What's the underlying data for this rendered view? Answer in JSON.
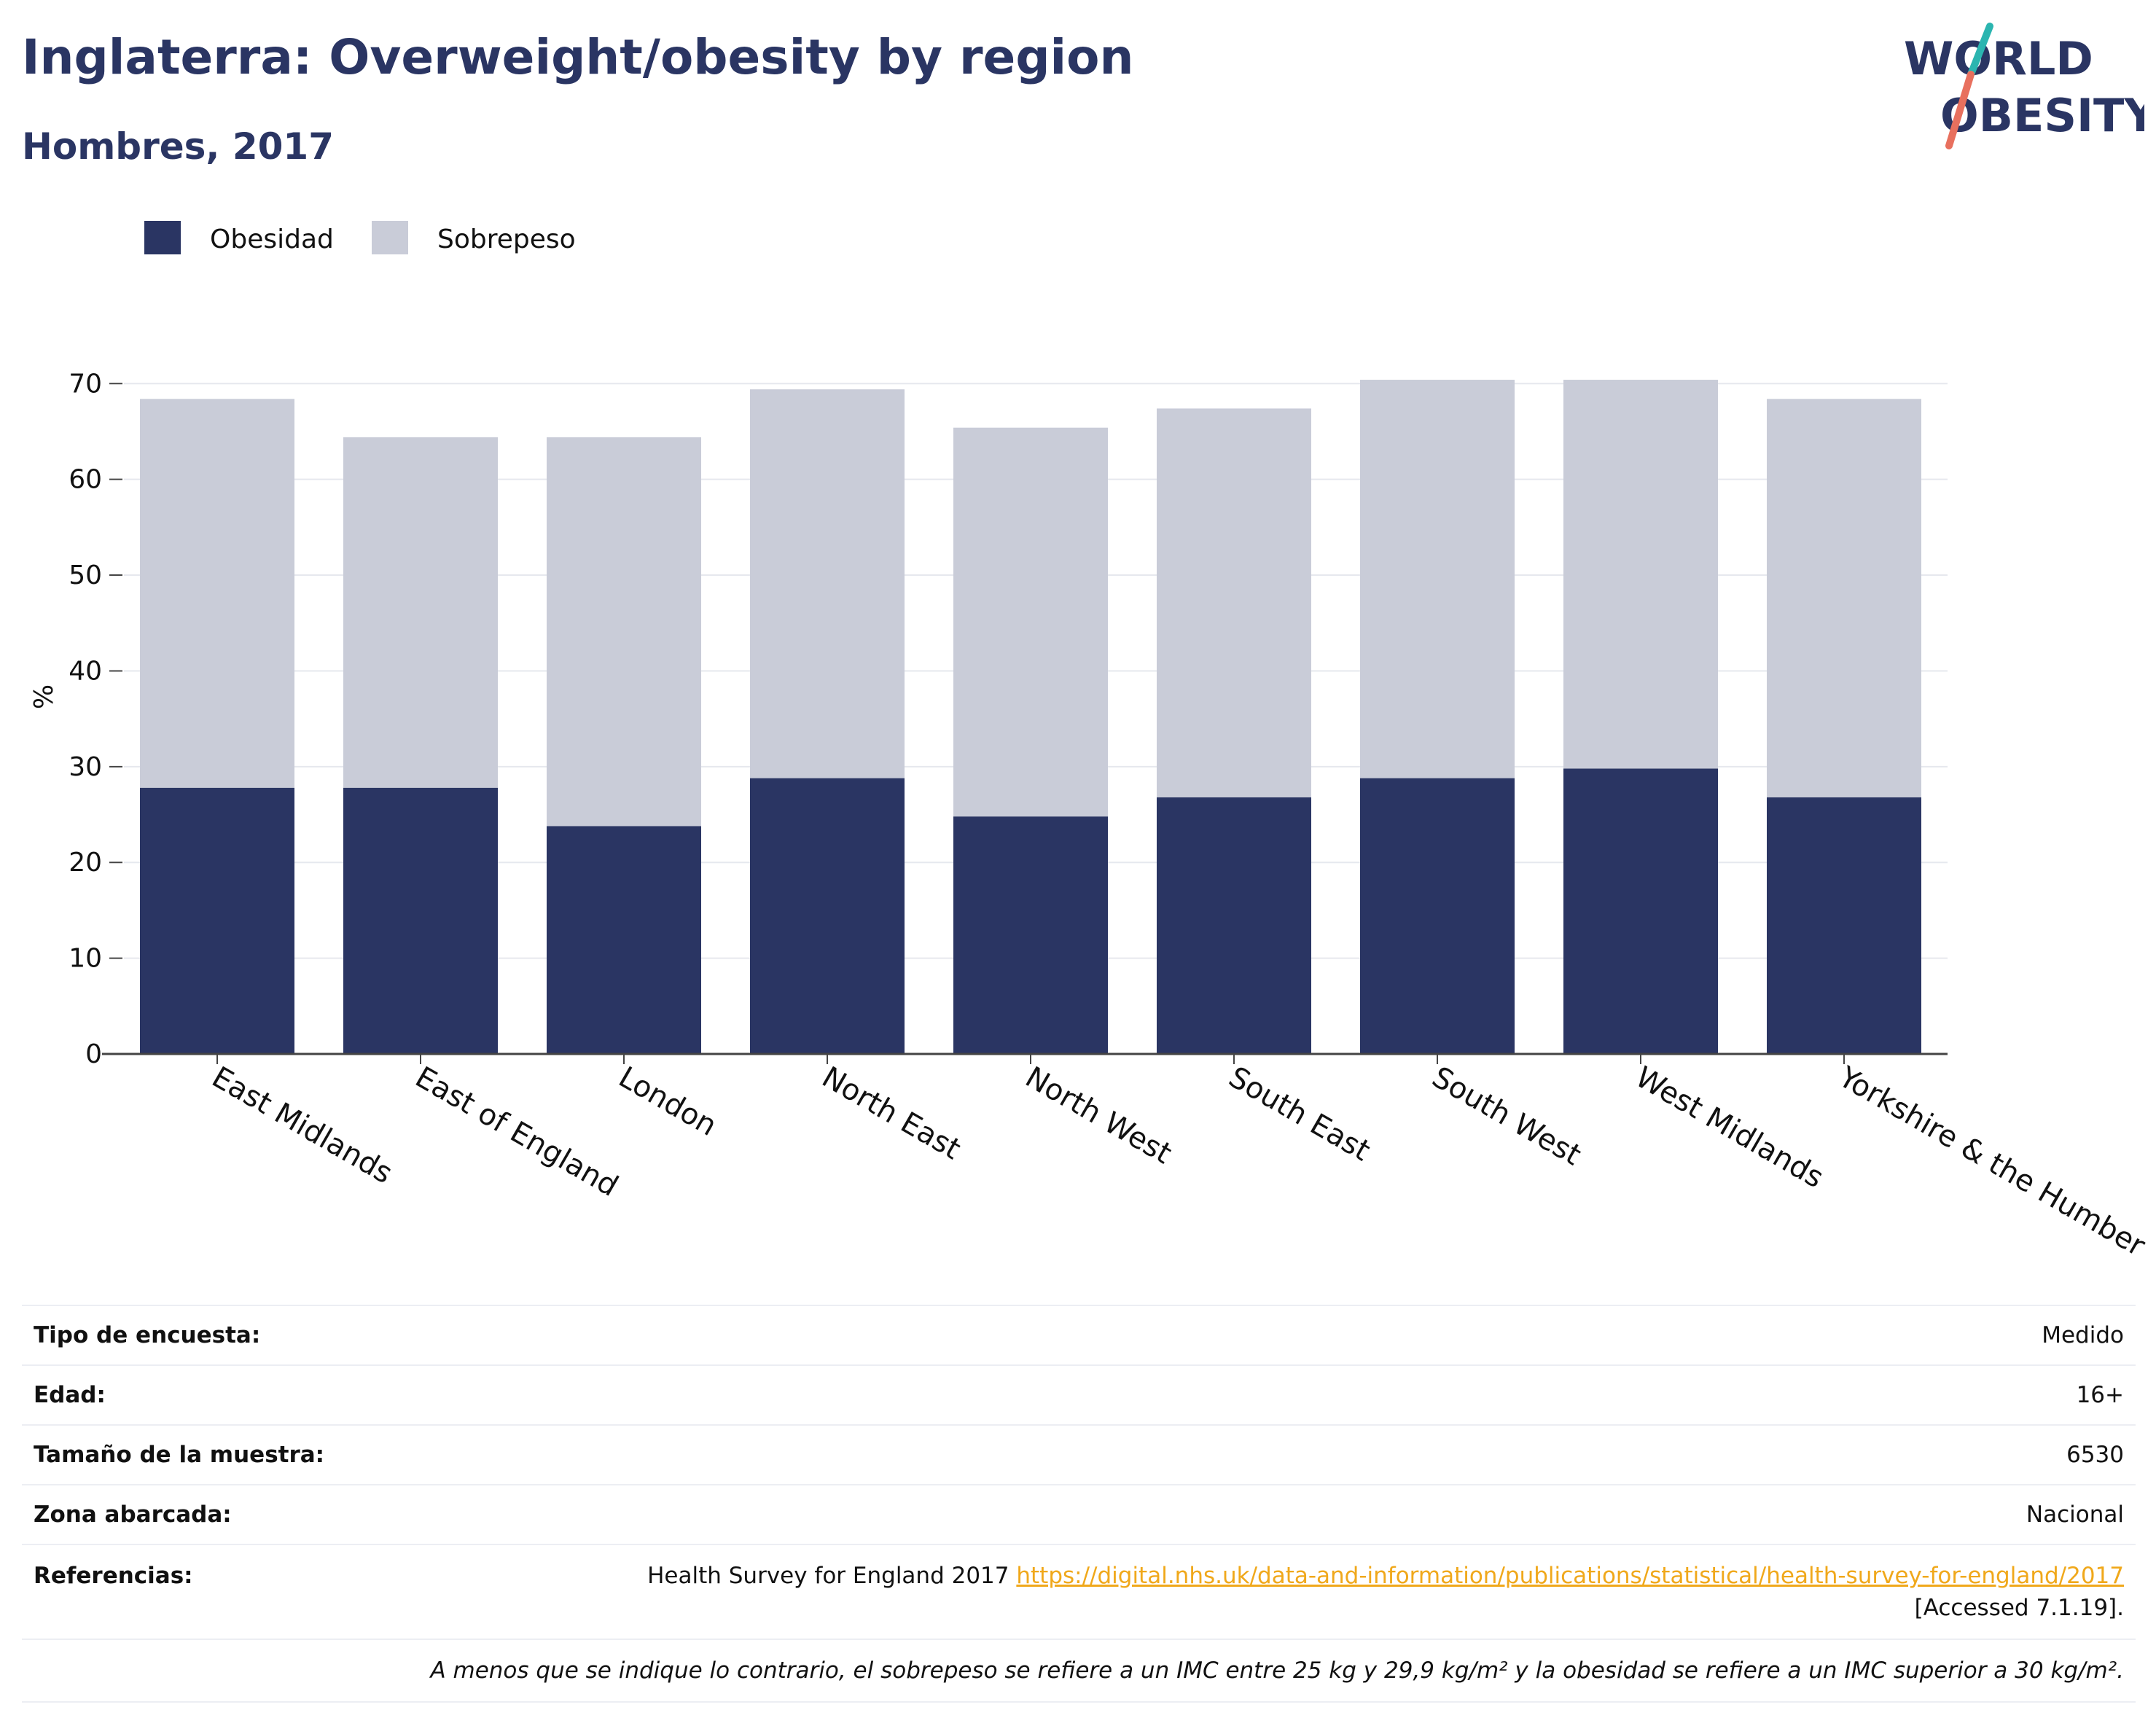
{
  "header": {
    "title": "Inglaterra: Overweight/obesity by region",
    "subtitle": "Hombres, 2017"
  },
  "logo": {
    "line1": "WORLD",
    "line2": "OBESITY",
    "colors": {
      "text": "#2a3563",
      "slash_top": "#2bb5b0",
      "slash_bottom": "#e8705e"
    }
  },
  "colors": {
    "obesity": "#2a3563",
    "overweight": "#c9ccd8",
    "title": "#2a3563",
    "link": "#f0a81b",
    "gridline": "#e6e8ee"
  },
  "chart_data": {
    "type": "bar",
    "stacked": true,
    "categories": [
      "East Midlands",
      "East of England",
      "London",
      "North East",
      "North West",
      "South East",
      "South West",
      "West Midlands",
      "Yorkshire & the Humber"
    ],
    "series": [
      {
        "name": "Obesidad",
        "color": "#2a3563",
        "values": [
          27.8,
          27.8,
          23.8,
          28.8,
          24.8,
          26.8,
          28.8,
          29.8,
          26.8
        ]
      },
      {
        "name": "Sobrepeso",
        "color": "#c9ccd8",
        "values": [
          40.6,
          36.6,
          40.6,
          40.6,
          40.6,
          40.6,
          41.6,
          40.6,
          41.6
        ]
      }
    ],
    "ylabel": "%",
    "xlabel": "",
    "ylim": [
      0,
      72
    ],
    "yticks": [
      0,
      10,
      20,
      30,
      40,
      50,
      60,
      70
    ],
    "grid": true,
    "legend_position": "top-left"
  },
  "info": {
    "rows": [
      {
        "key": "Tipo de encuesta:",
        "value": "Medido"
      },
      {
        "key": "Edad:",
        "value": "16+"
      },
      {
        "key": "Tamaño de la muestra:",
        "value": "6530"
      },
      {
        "key": "Zona abarcada:",
        "value": "Nacional"
      }
    ],
    "references": {
      "key": "Referencias:",
      "text": "Health Survey for England 2017",
      "link": "https://digital.nhs.uk/data-and-information/publications/statistical/health-survey-for-england/2017",
      "accessed": "[Accessed 7.1.19]."
    },
    "note": "A menos que se indique lo contrario, el sobrepeso se refiere a un IMC entre 25 kg y 29,9 kg/m² y la obesidad se refiere a un IMC superior a 30 kg/m²."
  }
}
